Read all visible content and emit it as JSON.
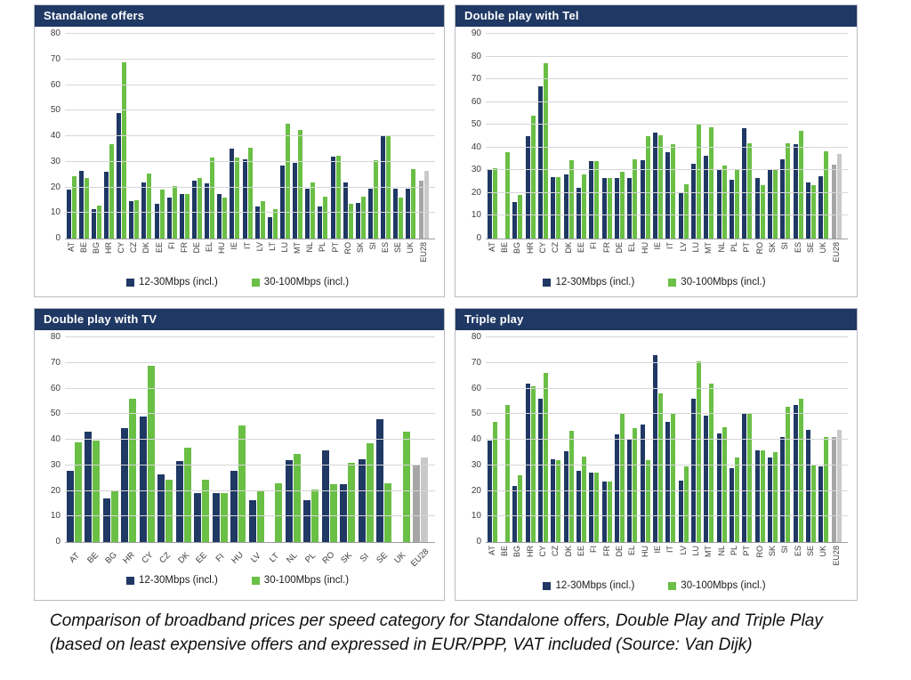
{
  "caption": "Comparison of broadband prices per speed category for Standalone offers, Double Play and Triple Play (based on least expensive offers and expressed in EUR/PPP, VAT included (Source: Van Dijk)",
  "colors": {
    "title_bar": "#1f3864",
    "series_12_30": "#1f3864",
    "series_30_100": "#6abf45",
    "eu28_12_30": "#a6a6a6",
    "eu28_30_100": "#c9c9c9",
    "gridline": "#d6d6d6"
  },
  "chart_data": [
    {
      "type": "bar",
      "title": "Standalone offers",
      "ylim": [
        0,
        80
      ],
      "ytick_step": 10,
      "grid": true,
      "legend_position": "bottom",
      "xlabel_rotation": "vertical",
      "categories": [
        "AT",
        "BE",
        "BG",
        "HR",
        "CY",
        "CZ",
        "DK",
        "EE",
        "FI",
        "FR",
        "DE",
        "EL",
        "HU",
        "IE",
        "IT",
        "LV",
        "LT",
        "LU",
        "MT",
        "NL",
        "PL",
        "PT",
        "RO",
        "SK",
        "SI",
        "ES",
        "SE",
        "UK",
        "EU28"
      ],
      "series": [
        {
          "name": "12-30Mbps (incl.)",
          "color": "#1f3864",
          "values": [
            19,
            26.5,
            11.5,
            26,
            49,
            14.5,
            22,
            13.5,
            16,
            17.5,
            22.5,
            21.5,
            17.5,
            35,
            31,
            12.5,
            8.5,
            28.5,
            29.5,
            19.5,
            12.5,
            32,
            22,
            14,
            19.5,
            40,
            19.5,
            19.5,
            22.5
          ]
        },
        {
          "name": "30-100Mbps (incl.)",
          "color": "#6abf45",
          "values": [
            24.5,
            23.5,
            13,
            37,
            69,
            15,
            25.5,
            19,
            20.5,
            17.5,
            23.5,
            31.5,
            16,
            31.5,
            35.5,
            14.5,
            11.5,
            45,
            42.5,
            22,
            16.5,
            32.5,
            13.5,
            16.5,
            30.5,
            40.5,
            16,
            27,
            26.5
          ]
        }
      ],
      "highlight_category": "EU28",
      "highlight_colors": [
        "#a6a6a6",
        "#c9c9c9"
      ]
    },
    {
      "type": "bar",
      "title": "Double play with Tel",
      "ylim": [
        0,
        90
      ],
      "ytick_step": 10,
      "grid": true,
      "legend_position": "bottom",
      "xlabel_rotation": "vertical",
      "categories": [
        "AT",
        "BE",
        "BG",
        "HR",
        "CY",
        "CZ",
        "DK",
        "EE",
        "FI",
        "FR",
        "DE",
        "EL",
        "HU",
        "IE",
        "IT",
        "LV",
        "LU",
        "MT",
        "NL",
        "PL",
        "PT",
        "RO",
        "SK",
        "SI",
        "ES",
        "SE",
        "UK",
        "EU28"
      ],
      "series": [
        {
          "name": "12-30Mbps (incl.)",
          "color": "#1f3864",
          "values": [
            30,
            null,
            16,
            45,
            67,
            27,
            28,
            22.5,
            34,
            26.5,
            26.5,
            26.5,
            34.5,
            46.5,
            38,
            20,
            33,
            36.5,
            30,
            26,
            48.5,
            26.5,
            30,
            35,
            41.5,
            24.5,
            27.5,
            32.5
          ]
        },
        {
          "name": "30-100Mbps (incl.)",
          "color": "#6abf45",
          "values": [
            31,
            38,
            19,
            54,
            77,
            27,
            34.5,
            28,
            34,
            26.5,
            29.5,
            35,
            45,
            45.5,
            41.5,
            24,
            50.5,
            49,
            32,
            30.5,
            42,
            23.5,
            30,
            42,
            47.5,
            23.5,
            38.5,
            37
          ]
        }
      ],
      "highlight_category": "EU28",
      "highlight_colors": [
        "#a6a6a6",
        "#c9c9c9"
      ]
    },
    {
      "type": "bar",
      "title": "Double play with TV",
      "ylim": [
        0,
        80
      ],
      "ytick_step": 10,
      "grid": true,
      "legend_position": "bottom",
      "xlabel_rotation": "diagonal",
      "categories": [
        "AT",
        "BE",
        "BG",
        "HR",
        "CY",
        "CZ",
        "DK",
        "EE",
        "FI",
        "HU",
        "LV",
        "LT",
        "NL",
        "PL",
        "RO",
        "SK",
        "SI",
        "SE",
        "UK",
        "EU28"
      ],
      "series": [
        {
          "name": "12-30Mbps (incl.)",
          "color": "#1f3864",
          "values": [
            28,
            43,
            17,
            44.5,
            49,
            26.5,
            31.5,
            19,
            19,
            28,
            16.5,
            null,
            32,
            16.5,
            36,
            22.5,
            32.5,
            48,
            null,
            30
          ]
        },
        {
          "name": "30-100Mbps (incl.)",
          "color": "#6abf45",
          "values": [
            39,
            39.5,
            20,
            56,
            69,
            24.5,
            37,
            24.5,
            19,
            45.5,
            20,
            23,
            34.5,
            20.5,
            22.5,
            31,
            38.5,
            23,
            43,
            33
          ]
        }
      ],
      "highlight_category": "EU28",
      "highlight_colors": [
        "#a6a6a6",
        "#c9c9c9"
      ]
    },
    {
      "type": "bar",
      "title": "Triple play",
      "ylim": [
        0,
        80
      ],
      "ytick_step": 10,
      "grid": true,
      "legend_position": "bottom",
      "xlabel_rotation": "vertical",
      "categories": [
        "AT",
        "BE",
        "BG",
        "HR",
        "CY",
        "CZ",
        "DK",
        "EE",
        "FI",
        "FR",
        "DE",
        "EL",
        "HU",
        "IE",
        "IT",
        "LV",
        "LU",
        "MT",
        "NL",
        "PL",
        "PT",
        "RO",
        "SK",
        "SI",
        "ES",
        "SE",
        "UK",
        "EU28"
      ],
      "series": [
        {
          "name": "12-30Mbps (incl.)",
          "color": "#1f3864",
          "values": [
            39.5,
            null,
            22,
            62,
            56,
            32.5,
            35.5,
            28,
            27,
            23.5,
            42,
            40,
            46,
            73,
            47,
            24,
            56,
            49.5,
            42.5,
            29,
            50,
            36,
            33,
            41,
            53.5,
            44,
            29.5,
            41
          ]
        },
        {
          "name": "30-100Mbps (incl.)",
          "color": "#6abf45",
          "values": [
            47,
            53.5,
            26,
            61,
            66,
            32,
            43.5,
            33.5,
            27,
            23.5,
            50.5,
            44.5,
            32,
            58,
            50.5,
            29.5,
            70.5,
            62,
            45,
            33,
            50,
            36,
            35,
            53,
            56,
            30,
            41,
            44
          ]
        }
      ],
      "highlight_category": "EU28",
      "highlight_colors": [
        "#a6a6a6",
        "#c9c9c9"
      ]
    }
  ]
}
